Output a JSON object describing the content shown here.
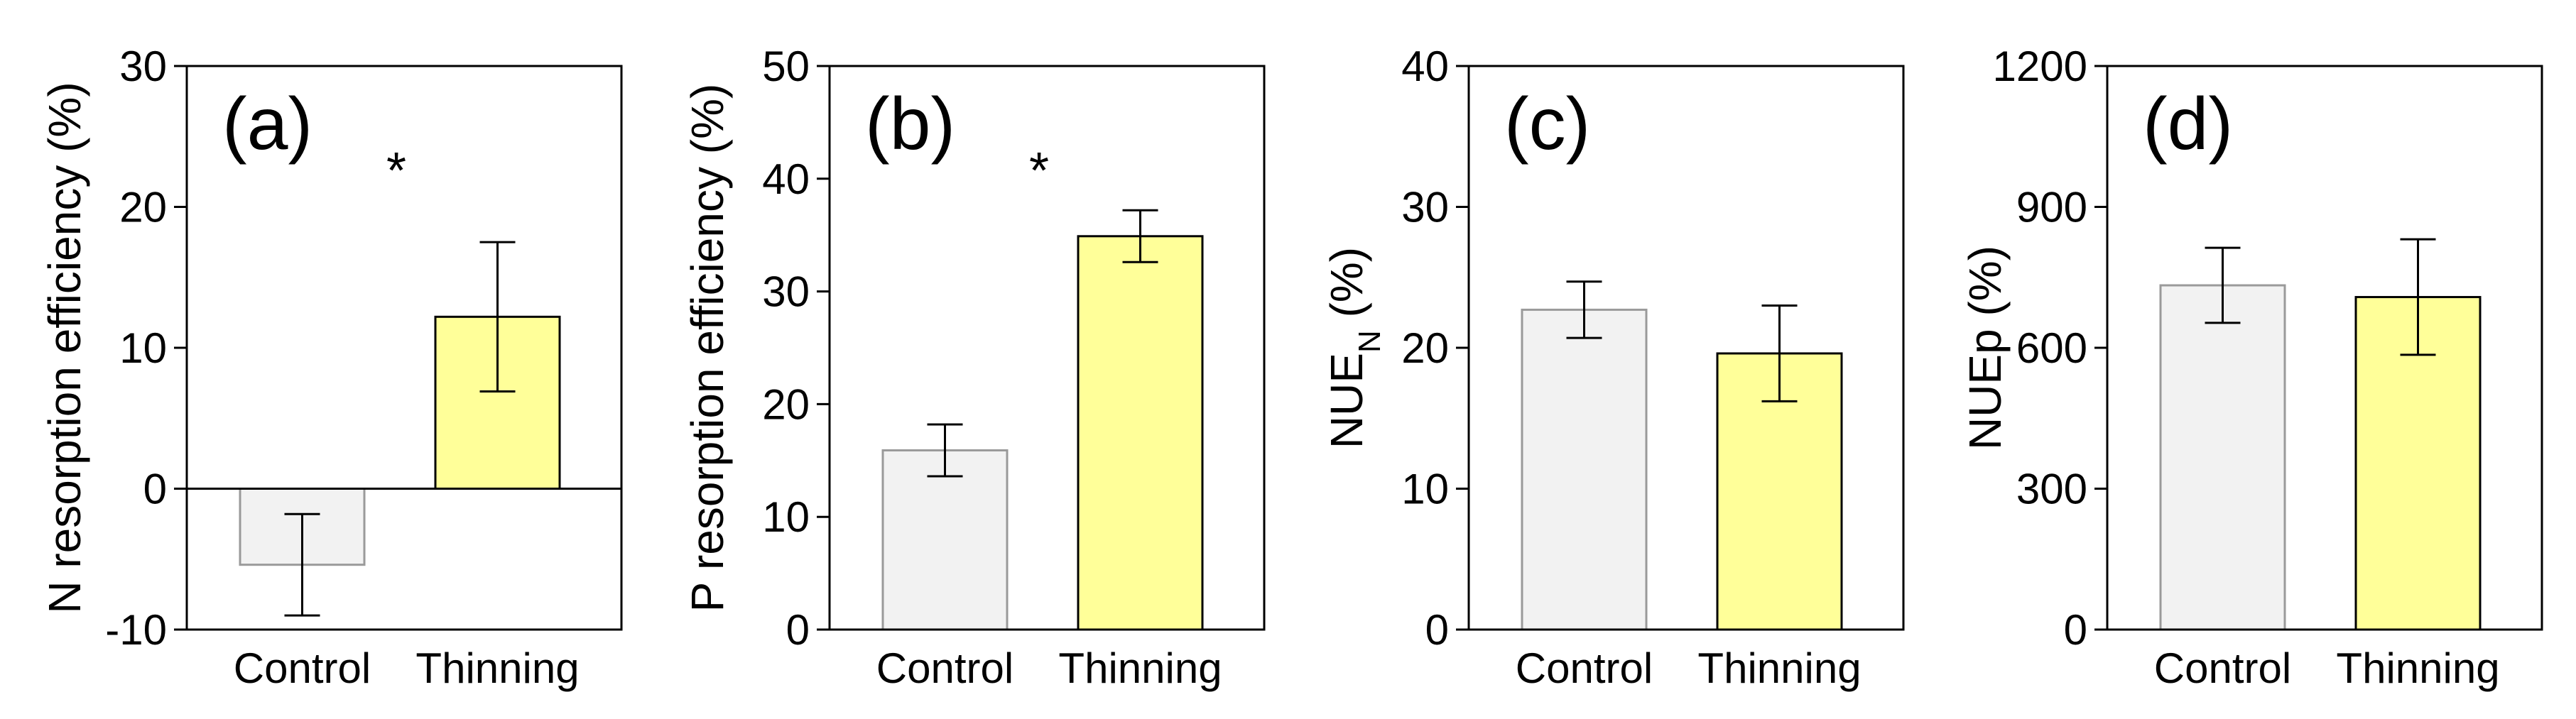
{
  "chart_data": [
    {
      "type": "bar",
      "panel_label": "(a)",
      "ylabel": "N resorption efficiency (%)",
      "ylim": [
        -10,
        30
      ],
      "yticks": [
        -10,
        0,
        10,
        20,
        30
      ],
      "categories": [
        "Control",
        "Thinning"
      ],
      "values": [
        -5.4,
        12.2
      ],
      "errors": [
        3.6,
        5.3
      ],
      "colors": [
        "#f2f2f2",
        "#ffff99"
      ],
      "edge_colors": [
        "#9a9a9a",
        "#000000"
      ],
      "significance": "*",
      "zero_line": true
    },
    {
      "type": "bar",
      "panel_label": "(b)",
      "ylabel": "P resorption efficiency (%)",
      "ylim": [
        0,
        50
      ],
      "yticks": [
        0,
        10,
        20,
        30,
        40,
        50
      ],
      "categories": [
        "Control",
        "Thinning"
      ],
      "values": [
        15.9,
        34.9
      ],
      "errors": [
        2.3,
        2.3
      ],
      "colors": [
        "#f2f2f2",
        "#ffff99"
      ],
      "edge_colors": [
        "#9a9a9a",
        "#000000"
      ],
      "significance": "*",
      "zero_line": false
    },
    {
      "type": "bar",
      "panel_label": "(c)",
      "ylabel": "NUE",
      "ylabel_sub": "N",
      "ylabel_suffix": " (%)",
      "ylim": [
        0,
        40
      ],
      "yticks": [
        0,
        10,
        20,
        30,
        40
      ],
      "categories": [
        "Control",
        "Thinning"
      ],
      "values": [
        22.7,
        19.6
      ],
      "errors": [
        2.0,
        3.4
      ],
      "colors": [
        "#f2f2f2",
        "#ffff99"
      ],
      "edge_colors": [
        "#9a9a9a",
        "#000000"
      ],
      "significance": "",
      "zero_line": false
    },
    {
      "type": "bar",
      "panel_label": "(d)",
      "ylabel": "NUEp (%)",
      "ylim": [
        0,
        1200
      ],
      "yticks": [
        0,
        300,
        600,
        900,
        1200
      ],
      "categories": [
        "Control",
        "Thinning"
      ],
      "values": [
        733,
        708
      ],
      "errors": [
        80,
        123
      ],
      "colors": [
        "#f2f2f2",
        "#ffff99"
      ],
      "edge_colors": [
        "#9a9a9a",
        "#000000"
      ],
      "significance": "",
      "zero_line": false
    }
  ]
}
